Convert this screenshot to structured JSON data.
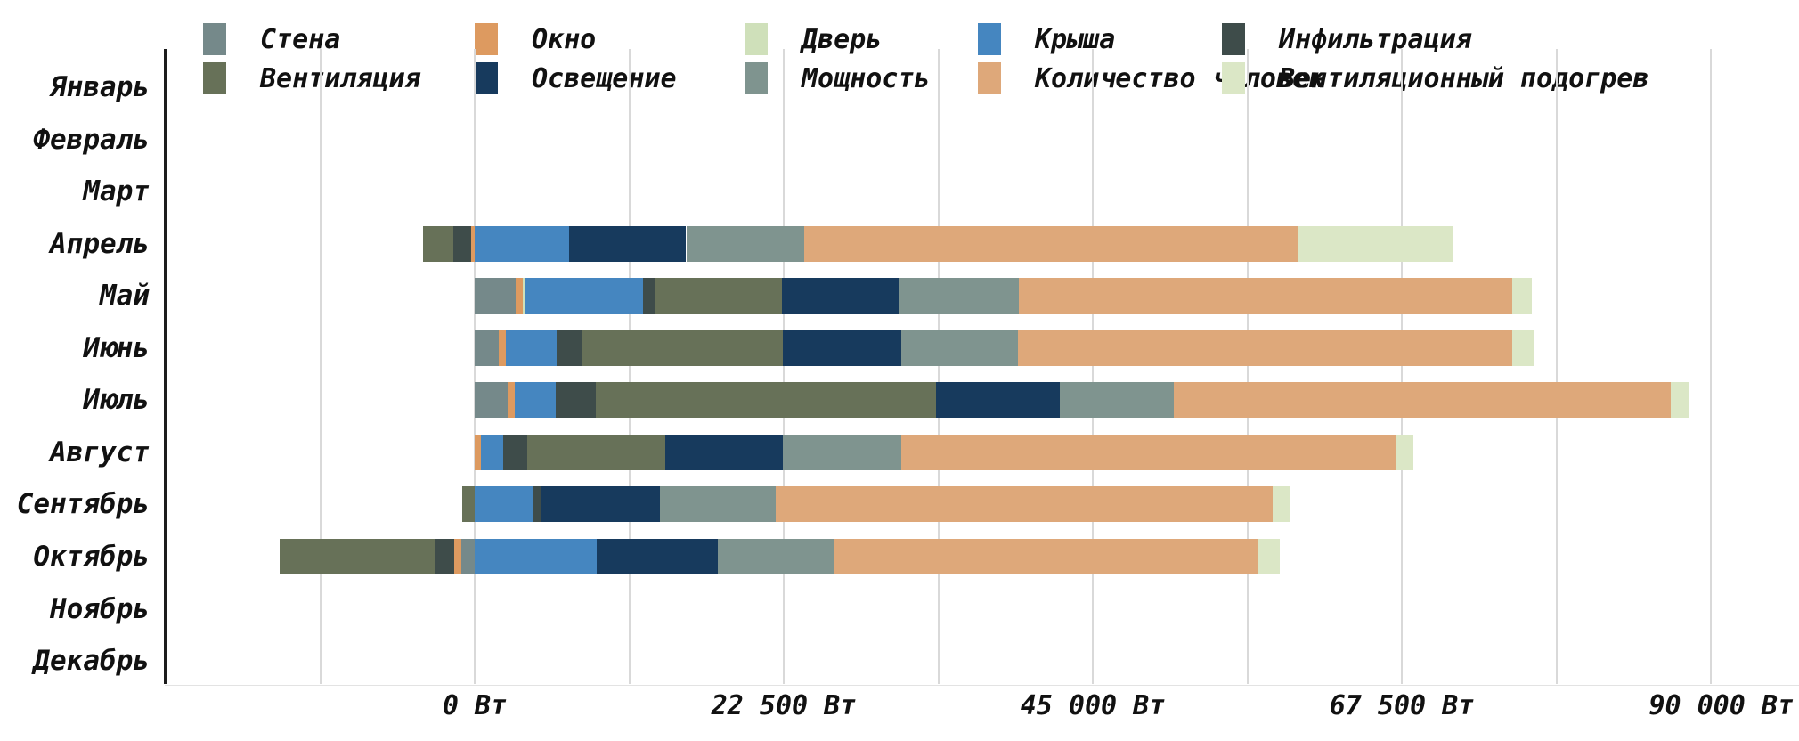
{
  "chart_data": {
    "type": "bar",
    "orientation": "horizontal",
    "stacked": true,
    "title": "",
    "unit": "Вт",
    "categories": [
      "Январь",
      "Февраль",
      "Март",
      "Апрель",
      "Май",
      "Июнь",
      "Июль",
      "Август",
      "Сентябрь",
      "Октябрь",
      "Ноябрь",
      "Декабрь"
    ],
    "series": [
      {
        "name": "Стена",
        "color": "#75898a",
        "values": [
          0,
          0,
          0,
          0,
          3000,
          1750,
          2400,
          0,
          0,
          -1000,
          0,
          0
        ]
      },
      {
        "name": "Окно",
        "color": "#dd9a60",
        "values": [
          0,
          0,
          0,
          -250,
          500,
          500,
          500,
          450,
          0,
          -500,
          0,
          0
        ]
      },
      {
        "name": "Дверь",
        "color": "#cfe0ba",
        "values": [
          0,
          0,
          0,
          0,
          150,
          0,
          0,
          0,
          0,
          0,
          0,
          0
        ]
      },
      {
        "name": "Крыша",
        "color": "#4586c0",
        "values": [
          0,
          0,
          0,
          6900,
          8600,
          3700,
          3000,
          1600,
          4200,
          8900,
          0,
          0
        ]
      },
      {
        "name": "Инфильтрация",
        "color": "#3e4c4a",
        "values": [
          0,
          0,
          0,
          -1300,
          900,
          1900,
          2900,
          1800,
          600,
          -1400,
          0,
          0
        ]
      },
      {
        "name": "Вентиляция",
        "color": "#677158",
        "values": [
          0,
          0,
          0,
          -2200,
          9200,
          14600,
          24800,
          10000,
          -900,
          -11300,
          0,
          0
        ]
      },
      {
        "name": "Освещение",
        "color": "#173a5d",
        "values": [
          0,
          0,
          0,
          8500,
          8600,
          8600,
          9000,
          8600,
          8700,
          8800,
          0,
          0
        ]
      },
      {
        "name": "Мощность",
        "color": "#7f948f",
        "values": [
          0,
          0,
          0,
          8600,
          8700,
          8500,
          8300,
          8600,
          8400,
          8500,
          0,
          0
        ]
      },
      {
        "name": "Количество человек",
        "color": "#dea87a",
        "values": [
          0,
          0,
          0,
          35900,
          35900,
          36000,
          36200,
          36000,
          36200,
          30800,
          0,
          0
        ]
      },
      {
        "name": "Вентиляционный подогрев",
        "color": "#dbe7c6",
        "values": [
          0,
          0,
          0,
          11300,
          1400,
          1600,
          1300,
          1300,
          1200,
          1600,
          0,
          0
        ]
      }
    ],
    "x_axis": {
      "min": -22500,
      "max": 90000,
      "gridline_step": 11250,
      "ticks": [
        {
          "value": 0,
          "label": "0 Вт"
        },
        {
          "value": 22500,
          "label": "22 500 Вт"
        },
        {
          "value": 45000,
          "label": "45 000 Вт"
        },
        {
          "value": 67500,
          "label": "67 500 Вт"
        },
        {
          "value": 90000,
          "label": "90 000 Вт"
        }
      ]
    },
    "legend_position": "top",
    "legend_rows": 2
  }
}
